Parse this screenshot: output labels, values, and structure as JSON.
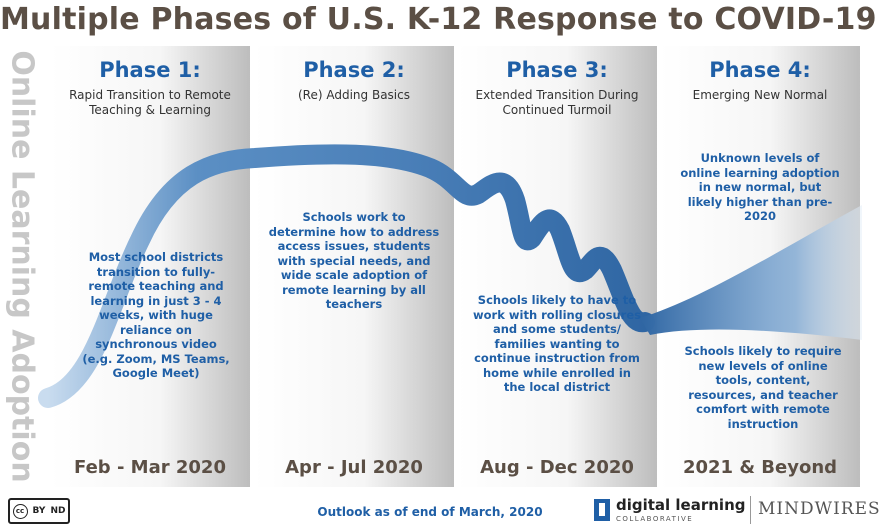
{
  "title": "Multiple Phases of U.S. K-12 Response to COVID-19",
  "y_axis_label": "Online Learning Adoption",
  "phases": [
    {
      "title": "Phase 1:",
      "subtitle": "Rapid Transition to Remote Teaching & Learning",
      "description": "Most school districts transition to fully-remote teaching and learning in just 3 - 4 weeks, with huge reliance on synchronous video (e.g. Zoom, MS Teams, Google Meet)",
      "date": "Feb - Mar 2020"
    },
    {
      "title": "Phase 2:",
      "subtitle": "(Re) Adding Basics",
      "description": "Schools work to determine how to address access issues, students with special needs, and wide scale adoption of remote learning by all teachers",
      "date": "Apr - Jul 2020"
    },
    {
      "title": "Phase 3:",
      "subtitle": "Extended Transition During Continued Turmoil",
      "description": "Schools likely to have to work with rolling closures and some students/ families wanting to continue instruction from home while enrolled in the local district",
      "date": "Aug - Dec 2020"
    },
    {
      "title": "Phase 4:",
      "subtitle": "Emerging New Normal",
      "description_top": "Unknown levels of online learning adoption in new normal, but likely higher than pre-2020",
      "description_bottom": "Schools likely to require new levels of online tools, content, resources, and teacher comfort with remote instruction",
      "date": "2021 & Beyond"
    }
  ],
  "footer": {
    "outlook": "Outlook as of end of March, 2020",
    "license": {
      "cc": "cc",
      "by": "BY",
      "nd": "ND"
    },
    "logo_dlc_name": "digital learning",
    "logo_dlc_sub": "COLLABORATIVE",
    "logo_mindwires": "MINDWIRES"
  },
  "colors": {
    "title": "#5b4f45",
    "phase_blue": "#1f5fa6",
    "curve": "#4a7fb8",
    "axis_label": "#c7c7c7"
  }
}
